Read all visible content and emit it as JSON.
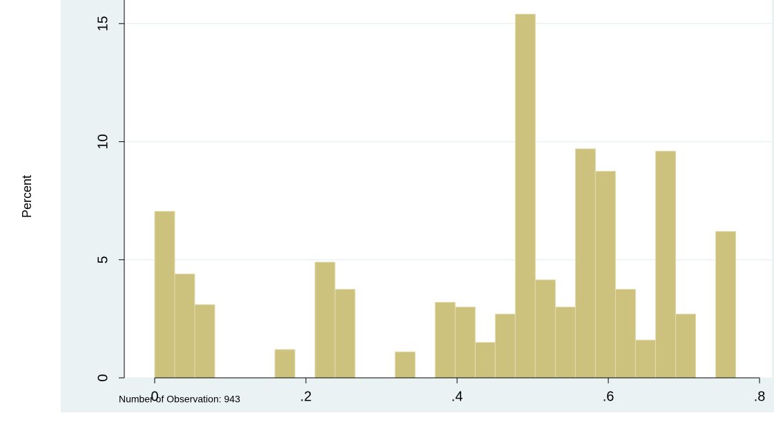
{
  "chart_data": {
    "type": "histogram",
    "y_label": "Percent",
    "note": "Number of Observation: 943",
    "bins": [
      0,
      0.0265,
      0.053,
      0.0795,
      0.106,
      0.1325,
      0.159,
      0.1855,
      0.212,
      0.2385,
      0.265,
      0.2915,
      0.318,
      0.3445,
      0.371,
      0.3975,
      0.424,
      0.4505,
      0.477,
      0.5035,
      0.53,
      0.5565,
      0.583,
      0.6095,
      0.636,
      0.6625,
      0.689,
      0.7155,
      0.742,
      0.7685
    ],
    "values": [
      7.05,
      4.4,
      3.1,
      0,
      0,
      0,
      1.2,
      0,
      4.9,
      3.75,
      0,
      0,
      1.1,
      0,
      3.2,
      3.0,
      1.5,
      2.7,
      15.4,
      4.15,
      3.0,
      9.7,
      8.75,
      3.75,
      1.6,
      9.6,
      2.7,
      0,
      6.2
    ],
    "color": "#ccc27d",
    "xlim": [
      -0.0402,
      0.8164
    ],
    "ylim": [
      0,
      16
    ],
    "xticks": [
      0,
      {
        "value": 0.2,
        "label": ".2"
      },
      {
        "value": 0.4,
        "label": ".4"
      },
      {
        "value": 0.6,
        "label": ".6"
      },
      {
        "value": 0.8,
        "label": ".8"
      }
    ],
    "yticks": [
      0,
      5,
      10,
      15
    ],
    "grid": true
  }
}
